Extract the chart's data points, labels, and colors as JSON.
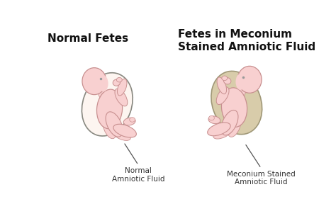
{
  "title_left": "Normal Fetes",
  "title_right": "Fetes in Meconium\nStained Amniotic Fluid",
  "label_left": "Normal\nAmniotic Fluid",
  "label_right": "Meconium Stained\nAmniotic Fluid",
  "bg_color": "#ffffff",
  "skin_color": "#f8d0d0",
  "skin_outline": "#c89090",
  "normal_fluid_fill": "#fdf5f0",
  "normal_fluid_outline": "#888880",
  "meconium_fluid_fill": "#d8ccaa",
  "meconium_fluid_outline": "#a09878",
  "title_fontsize": 11,
  "label_fontsize": 7.5,
  "label_color": "#333333",
  "title_color": "#111111"
}
